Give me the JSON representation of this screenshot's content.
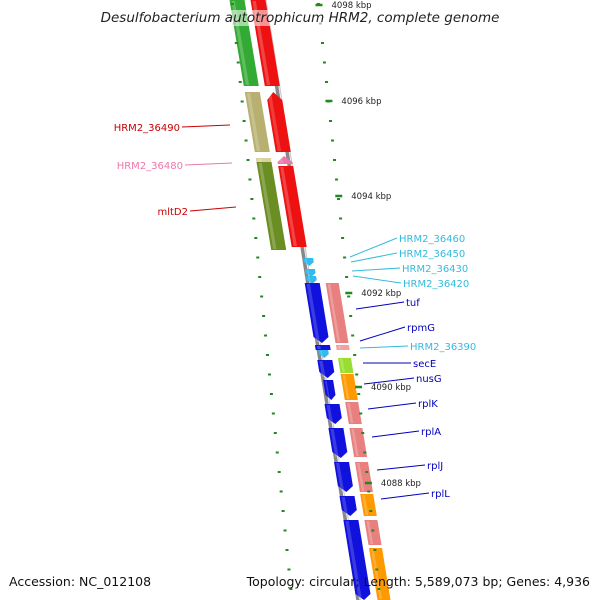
{
  "title": "Desulfobacterium autotrophicum HRM2, complete genome",
  "accession": "Accession: NC_012108",
  "topology": "Topology: circular; Length: 5,589,073 bp; Genes: 4,936",
  "kbp_ticks": [
    "4098 kbp",
    "4096 kbp",
    "4094 kbp",
    "4092 kbp",
    "4090 kbp",
    "4088 kbp"
  ],
  "gene_labels_left": [
    {
      "text": "HRM2_36490",
      "color": "#cc0000"
    },
    {
      "text": "HRM2_36480",
      "color": "#ee77aa"
    },
    {
      "text": "mltD2",
      "color": "#cc0000"
    }
  ],
  "gene_labels_right": [
    {
      "text": "HRM2_36460",
      "color": "#33bbdd"
    },
    {
      "text": "HRM2_36450",
      "color": "#33bbdd"
    },
    {
      "text": "HRM2_36430",
      "color": "#33bbdd"
    },
    {
      "text": "HRM2_36420",
      "color": "#33bbdd"
    },
    {
      "text": "tuf",
      "color": "#0000bb"
    },
    {
      "text": "rpmG",
      "color": "#0000bb"
    },
    {
      "text": "HRM2_36390",
      "color": "#33bbdd"
    },
    {
      "text": "secE",
      "color": "#0000bb"
    },
    {
      "text": "nusG",
      "color": "#0000bb"
    },
    {
      "text": "rplK",
      "color": "#0000bb"
    },
    {
      "text": "rplA",
      "color": "#0000bb"
    },
    {
      "text": "rplJ",
      "color": "#0000bb"
    },
    {
      "text": "rplL",
      "color": "#0000bb"
    }
  ],
  "colors": {
    "backbone": "#888888",
    "tick": "#228822",
    "green": "#33aa33",
    "red": "#ee1111",
    "khaki": "#b8b070",
    "olive": "#6b8e23",
    "blue": "#1111dd",
    "salmon": "#e88080",
    "lime": "#99dd33",
    "orange": "#ff9900",
    "cyan": "#33bbee"
  }
}
